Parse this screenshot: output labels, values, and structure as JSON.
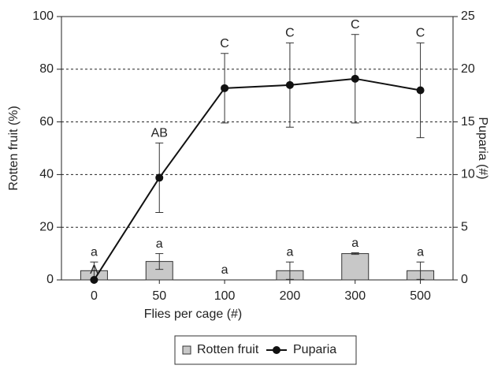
{
  "chart_data": {
    "type": "bar",
    "categories": [
      "0",
      "50",
      "100",
      "200",
      "300",
      "500"
    ],
    "x_label": "Flies per cage (#)",
    "y_label": "Rotten fruit (%)",
    "y2_label": "Puparia (#)",
    "ylim": [
      0,
      100
    ],
    "yticks": [
      0,
      20,
      40,
      60,
      80,
      100
    ],
    "y2lim": [
      0,
      25
    ],
    "y2ticks": [
      0,
      5,
      10,
      15,
      20,
      25
    ],
    "grid": true,
    "legend": "bottom",
    "series": [
      {
        "name": "Rotten fruit",
        "type": "bar",
        "color": "#c8c8c8",
        "values": [
          3.5,
          7,
          0,
          3.5,
          10,
          3.5
        ],
        "errors": [
          3.3,
          3,
          0,
          3.3,
          0.3,
          3.3
        ],
        "letters": [
          "a",
          "a",
          "a",
          "a",
          "a",
          "a"
        ]
      },
      {
        "name": "Puparia",
        "type": "line",
        "axis": "y2",
        "color": "#111111",
        "values": [
          0,
          9.7,
          18.2,
          18.5,
          19.1,
          18.0
        ],
        "errors": [
          0,
          3.3,
          3.3,
          4.0,
          4.2,
          4.5
        ],
        "letters": [
          "A",
          "AB",
          "C",
          "C",
          "C",
          "C"
        ]
      }
    ]
  }
}
